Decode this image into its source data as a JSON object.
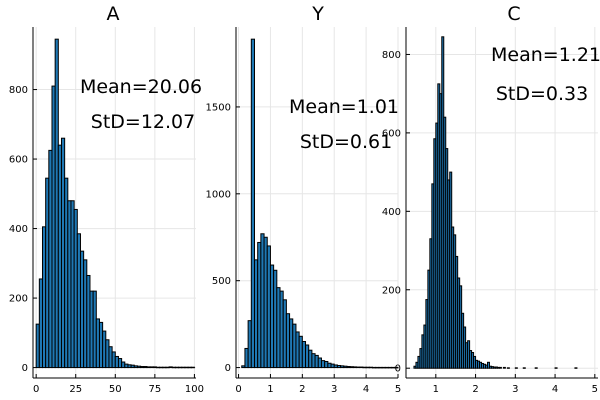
{
  "chart_data": [
    {
      "type": "bar",
      "title": "A",
      "xlim": [
        -2,
        101
      ],
      "ylim": [
        -30,
        980
      ],
      "xticks": [
        0,
        25,
        50,
        75,
        100
      ],
      "yticks": [
        0,
        200,
        400,
        600,
        800
      ],
      "bin_width": 2,
      "bins_start": [
        0,
        2,
        4,
        6,
        8,
        10,
        12,
        14,
        16,
        18,
        20,
        22,
        24,
        26,
        28,
        30,
        32,
        34,
        36,
        38,
        40,
        42,
        44,
        46,
        48,
        50,
        52,
        54,
        56,
        58,
        60,
        62,
        64,
        66,
        68,
        70,
        72,
        74,
        76,
        78,
        80,
        82,
        84,
        86,
        88,
        90,
        92,
        94,
        96,
        98
      ],
      "values": [
        125,
        255,
        405,
        545,
        625,
        810,
        945,
        640,
        660,
        545,
        480,
        480,
        455,
        385,
        335,
        310,
        265,
        220,
        220,
        140,
        130,
        105,
        80,
        60,
        45,
        32,
        26,
        16,
        10,
        8,
        7,
        5,
        4,
        3,
        3,
        2,
        2,
        2,
        1,
        1,
        1,
        1,
        2,
        1,
        1,
        1,
        1,
        1,
        1,
        1
      ],
      "annotations": [
        "Mean=20.06",
        "StD=12.07"
      ]
    },
    {
      "type": "bar",
      "title": "Y",
      "xlim": [
        -0.08,
        5.0
      ],
      "ylim": [
        -60,
        1960
      ],
      "xticks": [
        0,
        1,
        2,
        3,
        4,
        5
      ],
      "yticks": [
        0,
        500,
        1000,
        1500
      ],
      "bin_width": 0.1,
      "bins_start": [
        0.1,
        0.2,
        0.3,
        0.4,
        0.5,
        0.6,
        0.7,
        0.8,
        0.9,
        1.0,
        1.1,
        1.2,
        1.3,
        1.4,
        1.5,
        1.6,
        1.7,
        1.8,
        1.9,
        2.0,
        2.1,
        2.2,
        2.3,
        2.4,
        2.5,
        2.6,
        2.7,
        2.8,
        2.9,
        3.0,
        3.1,
        3.2,
        3.3,
        3.4,
        3.5,
        3.6,
        3.7,
        3.8,
        3.9,
        4.0,
        4.1,
        4.2,
        4.3,
        4.4,
        4.5,
        4.6,
        4.7,
        4.8,
        4.9
      ],
      "values": [
        10,
        110,
        270,
        1890,
        620,
        720,
        770,
        750,
        700,
        590,
        560,
        460,
        440,
        390,
        310,
        280,
        250,
        205,
        180,
        150,
        130,
        100,
        80,
        70,
        55,
        40,
        35,
        25,
        20,
        15,
        12,
        10,
        8,
        6,
        5,
        4,
        3,
        3,
        2,
        2,
        2,
        1,
        1,
        1,
        1,
        1,
        1,
        1,
        1
      ],
      "annotations": [
        "Mean=1.01",
        "StD=0.61"
      ]
    },
    {
      "type": "bar",
      "title": "C",
      "xlim": [
        0.25,
        5.08
      ],
      "ylim": [
        -25,
        870
      ],
      "xticks": [
        1,
        2,
        3,
        4,
        5
      ],
      "yticks": [
        0,
        200,
        400,
        600,
        800
      ],
      "bin_width": 0.05,
      "bins_start": [
        0.45,
        0.5,
        0.55,
        0.6,
        0.65,
        0.7,
        0.75,
        0.8,
        0.85,
        0.9,
        0.95,
        1.0,
        1.05,
        1.1,
        1.15,
        1.2,
        1.25,
        1.3,
        1.35,
        1.4,
        1.45,
        1.5,
        1.55,
        1.6,
        1.65,
        1.7,
        1.75,
        1.8,
        1.85,
        1.9,
        1.95,
        2.0,
        2.05,
        2.1,
        2.15,
        2.2,
        2.25,
        2.3,
        2.35,
        2.4,
        2.45,
        2.5,
        2.55,
        2.6,
        2.7,
        2.8,
        3.0,
        3.2,
        3.5,
        4.0,
        4.5
      ],
      "values": [
        5,
        15,
        30,
        50,
        85,
        110,
        175,
        250,
        330,
        470,
        585,
        625,
        725,
        700,
        845,
        640,
        560,
        480,
        500,
        360,
        340,
        285,
        230,
        210,
        140,
        105,
        65,
        70,
        45,
        40,
        30,
        20,
        18,
        15,
        12,
        10,
        8,
        15,
        5,
        4,
        3,
        3,
        2,
        2,
        2,
        1,
        1,
        1,
        1,
        1,
        1
      ],
      "annotations": [
        "Mean=1.21",
        "StD=0.33"
      ]
    }
  ]
}
